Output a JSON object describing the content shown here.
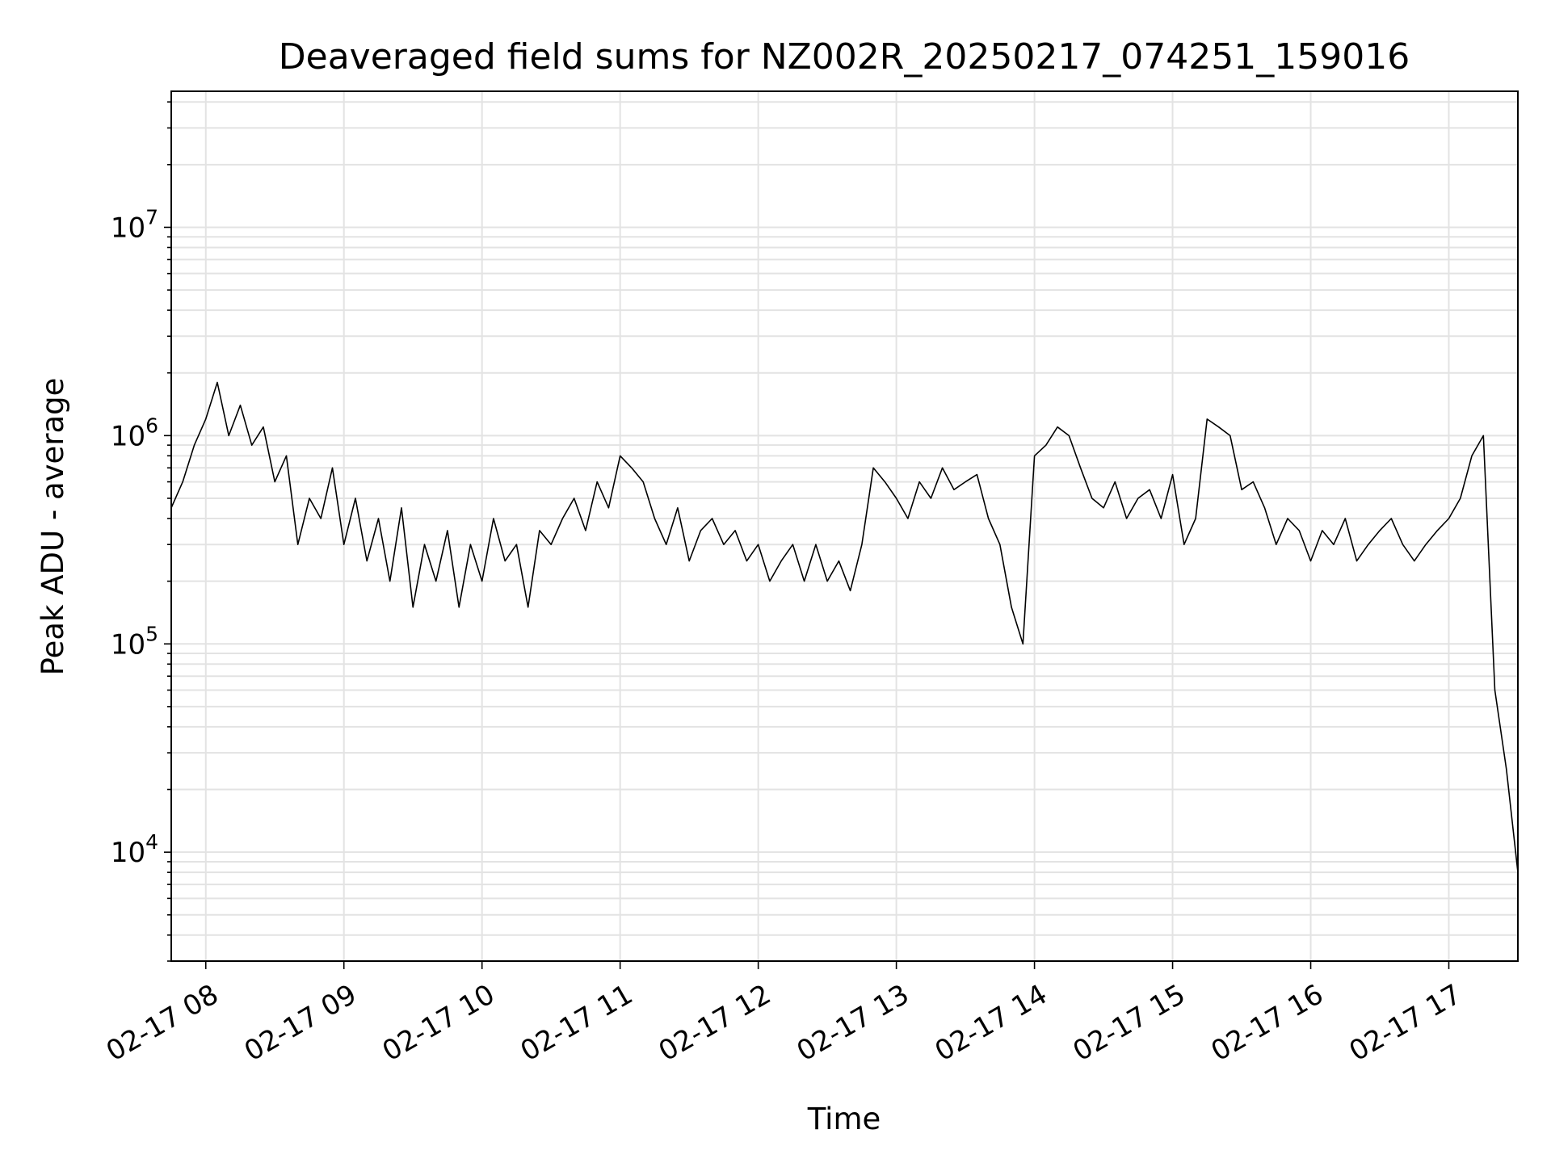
{
  "chart_data": {
    "type": "line",
    "title": "Deaveraged field sums for NZ002R_20250217_074251_159016",
    "xlabel": "Time",
    "ylabel": "Peak ADU - average",
    "x_range": [
      "2025-02-17 07:45",
      "2025-02-17 17:30"
    ],
    "yscale": "log",
    "ylim": [
      3000,
      45000000
    ],
    "grid": true,
    "grid_minor_y": true,
    "line_color": "#000000",
    "x_ticks": [
      "02-17 08",
      "02-17 09",
      "02-17 10",
      "02-17 11",
      "02-17 12",
      "02-17 13",
      "02-17 14",
      "02-17 15",
      "02-17 16",
      "02-17 17"
    ],
    "y_ticks": [
      {
        "value": 10000,
        "base": "10",
        "exp": "4"
      },
      {
        "value": 100000,
        "base": "10",
        "exp": "5"
      },
      {
        "value": 1000000,
        "base": "10",
        "exp": "6"
      },
      {
        "value": 10000000,
        "base": "10",
        "exp": "7"
      }
    ],
    "series": [
      {
        "x": [
          "2025-02-17 07:45",
          "2025-02-17 07:50",
          "2025-02-17 07:55",
          "2025-02-17 08:00",
          "2025-02-17 08:05",
          "2025-02-17 08:10",
          "2025-02-17 08:15",
          "2025-02-17 08:20",
          "2025-02-17 08:25",
          "2025-02-17 08:30",
          "2025-02-17 08:35",
          "2025-02-17 08:40",
          "2025-02-17 08:45",
          "2025-02-17 08:50",
          "2025-02-17 08:55",
          "2025-02-17 09:00",
          "2025-02-17 09:05",
          "2025-02-17 09:10",
          "2025-02-17 09:15",
          "2025-02-17 09:20",
          "2025-02-17 09:25",
          "2025-02-17 09:30",
          "2025-02-17 09:35",
          "2025-02-17 09:40",
          "2025-02-17 09:45",
          "2025-02-17 09:50",
          "2025-02-17 09:55",
          "2025-02-17 10:00",
          "2025-02-17 10:05",
          "2025-02-17 10:10",
          "2025-02-17 10:15",
          "2025-02-17 10:20",
          "2025-02-17 10:25",
          "2025-02-17 10:30",
          "2025-02-17 10:35",
          "2025-02-17 10:40",
          "2025-02-17 10:45",
          "2025-02-17 10:50",
          "2025-02-17 10:55",
          "2025-02-17 11:00",
          "2025-02-17 11:05",
          "2025-02-17 11:10",
          "2025-02-17 11:15",
          "2025-02-17 11:20",
          "2025-02-17 11:25",
          "2025-02-17 11:30",
          "2025-02-17 11:35",
          "2025-02-17 11:40",
          "2025-02-17 11:45",
          "2025-02-17 11:50",
          "2025-02-17 11:55",
          "2025-02-17 12:00",
          "2025-02-17 12:05",
          "2025-02-17 12:10",
          "2025-02-17 12:15",
          "2025-02-17 12:20",
          "2025-02-17 12:25",
          "2025-02-17 12:30",
          "2025-02-17 12:35",
          "2025-02-17 12:40",
          "2025-02-17 12:45",
          "2025-02-17 12:50",
          "2025-02-17 12:55",
          "2025-02-17 13:00",
          "2025-02-17 13:05",
          "2025-02-17 13:10",
          "2025-02-17 13:15",
          "2025-02-17 13:20",
          "2025-02-17 13:25",
          "2025-02-17 13:30",
          "2025-02-17 13:35",
          "2025-02-17 13:40",
          "2025-02-17 13:45",
          "2025-02-17 13:50",
          "2025-02-17 13:55",
          "2025-02-17 14:00",
          "2025-02-17 14:05",
          "2025-02-17 14:10",
          "2025-02-17 14:15",
          "2025-02-17 14:20",
          "2025-02-17 14:25",
          "2025-02-17 14:30",
          "2025-02-17 14:35",
          "2025-02-17 14:40",
          "2025-02-17 14:45",
          "2025-02-17 14:50",
          "2025-02-17 14:55",
          "2025-02-17 15:00",
          "2025-02-17 15:05",
          "2025-02-17 15:10",
          "2025-02-17 15:15",
          "2025-02-17 15:20",
          "2025-02-17 15:25",
          "2025-02-17 15:30",
          "2025-02-17 15:35",
          "2025-02-17 15:40",
          "2025-02-17 15:45",
          "2025-02-17 15:50",
          "2025-02-17 15:55",
          "2025-02-17 16:00",
          "2025-02-17 16:05",
          "2025-02-17 16:10",
          "2025-02-17 16:15",
          "2025-02-17 16:20",
          "2025-02-17 16:25",
          "2025-02-17 16:30",
          "2025-02-17 16:35",
          "2025-02-17 16:40",
          "2025-02-17 16:45",
          "2025-02-17 16:50",
          "2025-02-17 16:55",
          "2025-02-17 17:00",
          "2025-02-17 17:05",
          "2025-02-17 17:10",
          "2025-02-17 17:15",
          "2025-02-17 17:20",
          "2025-02-17 17:25",
          "2025-02-17 17:30"
        ],
        "values": [
          450000,
          600000,
          900000,
          1200000,
          1800000,
          1000000,
          1400000,
          900000,
          1100000,
          600000,
          800000,
          300000,
          500000,
          400000,
          700000,
          300000,
          500000,
          250000,
          400000,
          200000,
          450000,
          150000,
          300000,
          200000,
          350000,
          150000,
          300000,
          200000,
          400000,
          250000,
          300000,
          150000,
          350000,
          300000,
          400000,
          500000,
          350000,
          600000,
          450000,
          800000,
          700000,
          600000,
          400000,
          300000,
          450000,
          250000,
          350000,
          400000,
          300000,
          350000,
          250000,
          300000,
          200000,
          250000,
          300000,
          200000,
          300000,
          200000,
          250000,
          180000,
          300000,
          700000,
          600000,
          500000,
          400000,
          600000,
          500000,
          700000,
          550000,
          600000,
          650000,
          400000,
          300000,
          150000,
          100000,
          800000,
          900000,
          1100000,
          1000000,
          700000,
          500000,
          450000,
          600000,
          400000,
          500000,
          550000,
          400000,
          650000,
          300000,
          400000,
          1200000,
          1100000,
          1000000,
          550000,
          600000,
          450000,
          300000,
          400000,
          350000,
          250000,
          350000,
          300000,
          400000,
          250000,
          300000,
          350000,
          400000,
          300000,
          250000,
          300000,
          350000,
          400000,
          500000,
          800000,
          1000000,
          60000,
          25000,
          8000
        ]
      }
    ]
  }
}
